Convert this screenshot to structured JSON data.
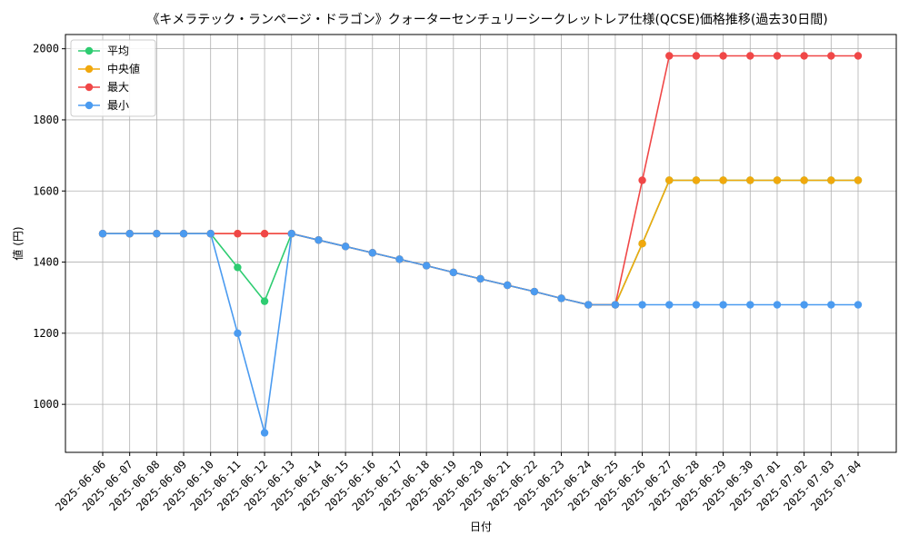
{
  "chart_data": {
    "type": "line",
    "title": "《キメラテック・ランページ・ドラゴン》クォーターセンチュリーシークレットレア仕様(QCSE)価格推移(過去30日間)",
    "xlabel": "日付",
    "ylabel": "値 (円)",
    "ylim": [
      865,
      2040
    ],
    "yticks": [
      1000,
      1200,
      1400,
      1600,
      1800,
      2000
    ],
    "grid": true,
    "legend_position": "top-left",
    "x": [
      "2025-06-06",
      "2025-06-07",
      "2025-06-08",
      "2025-06-09",
      "2025-06-10",
      "2025-06-11",
      "2025-06-12",
      "2025-06-13",
      "2025-06-14",
      "2025-06-15",
      "2025-06-16",
      "2025-06-17",
      "2025-06-18",
      "2025-06-19",
      "2025-06-20",
      "2025-06-21",
      "2025-06-22",
      "2025-06-23",
      "2025-06-24",
      "2025-06-25",
      "2025-06-26",
      "2025-06-27",
      "2025-06-28",
      "2025-06-29",
      "2025-06-30",
      "2025-07-01",
      "2025-07-02",
      "2025-07-03",
      "2025-07-04"
    ],
    "series": [
      {
        "name": "平均",
        "color": "#2ecc71",
        "values": [
          1480,
          1480,
          1480,
          1480,
          1480,
          1385,
          1290,
          1480,
          1462,
          1444,
          1426,
          1408,
          1390,
          1371,
          1353,
          1335,
          1317,
          1298,
          1280,
          1280,
          1452,
          1630,
          1630,
          1630,
          1630,
          1630,
          1630,
          1630,
          1630
        ]
      },
      {
        "name": "中央値",
        "color": "#f1a80d",
        "values": [
          1480,
          1480,
          1480,
          1480,
          1480,
          1480,
          1480,
          1480,
          1462,
          1444,
          1426,
          1408,
          1390,
          1371,
          1353,
          1335,
          1317,
          1298,
          1280,
          1280,
          1452,
          1630,
          1630,
          1630,
          1630,
          1630,
          1630,
          1630,
          1630
        ]
      },
      {
        "name": "最大",
        "color": "#f04747",
        "values": [
          1480,
          1480,
          1480,
          1480,
          1480,
          1480,
          1480,
          1480,
          1462,
          1444,
          1426,
          1408,
          1390,
          1371,
          1353,
          1335,
          1317,
          1298,
          1280,
          1280,
          1630,
          1980,
          1980,
          1980,
          1980,
          1980,
          1980,
          1980,
          1980
        ]
      },
      {
        "name": "最小",
        "color": "#4b9bf0",
        "values": [
          1480,
          1480,
          1480,
          1480,
          1480,
          1200,
          920,
          1480,
          1462,
          1444,
          1426,
          1408,
          1390,
          1371,
          1353,
          1335,
          1317,
          1298,
          1280,
          1280,
          1280,
          1280,
          1280,
          1280,
          1280,
          1280,
          1280,
          1280,
          1280
        ]
      }
    ]
  }
}
